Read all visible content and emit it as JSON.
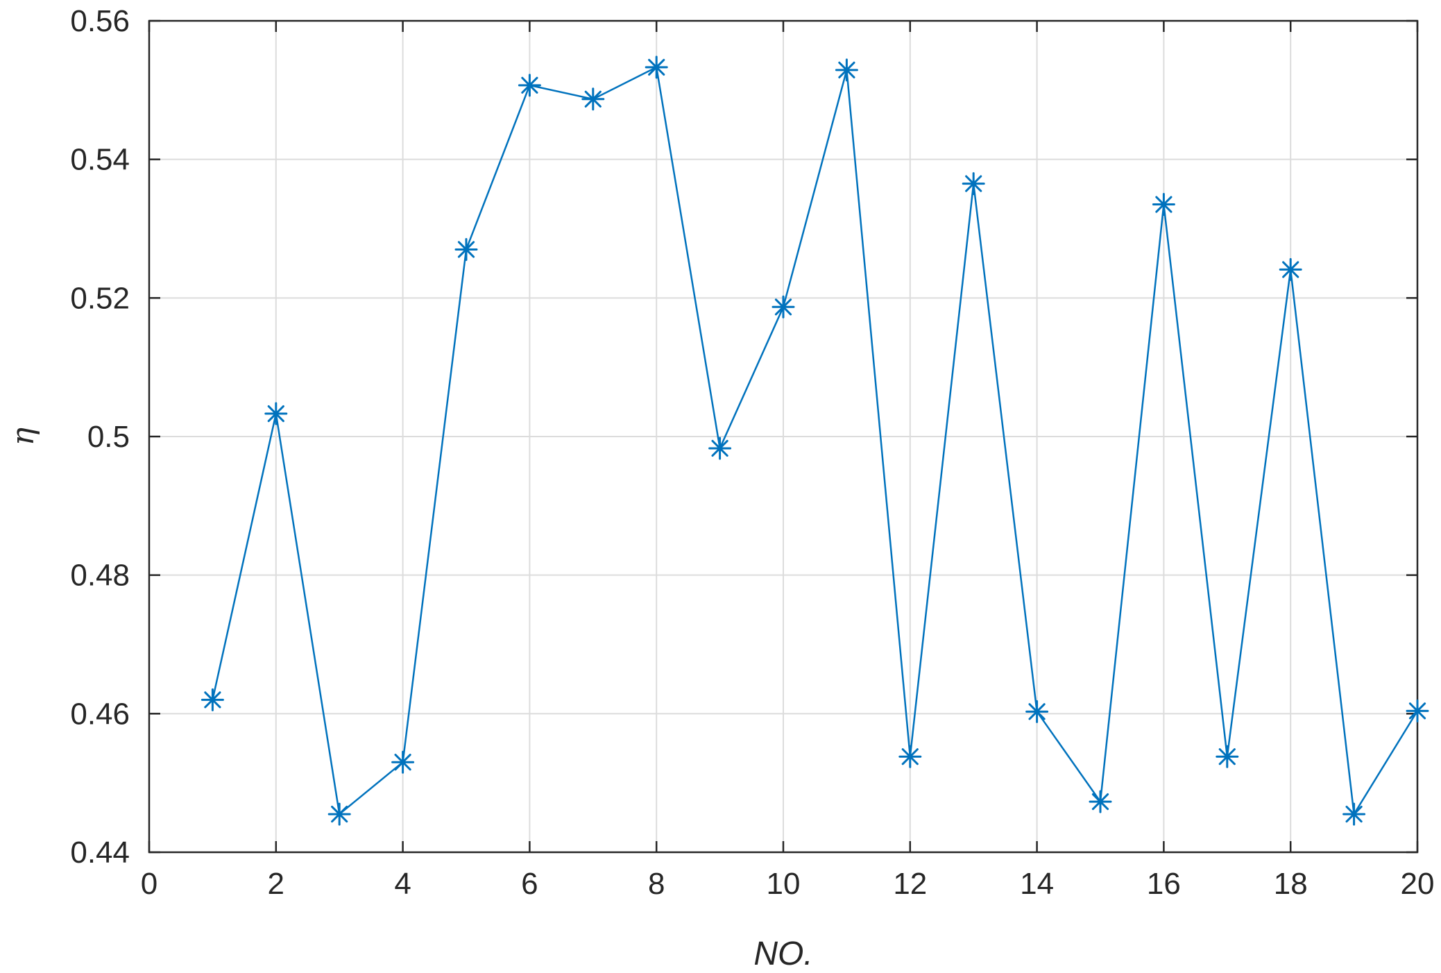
{
  "chart_data": {
    "type": "line",
    "title": "",
    "xlabel": "NO.",
    "ylabel": "η",
    "xlim": [
      0,
      20
    ],
    "ylim": [
      0.44,
      0.56
    ],
    "xticks": [
      0,
      2,
      4,
      6,
      8,
      10,
      12,
      14,
      16,
      18,
      20
    ],
    "yticks": [
      0.44,
      0.46,
      0.48,
      0.5,
      0.52,
      0.54,
      0.56
    ],
    "xtick_labels": [
      "0",
      "2",
      "4",
      "6",
      "8",
      "10",
      "12",
      "14",
      "16",
      "18",
      "20"
    ],
    "ytick_labels": [
      "0.44",
      "0.46",
      "0.48",
      "0.5",
      "0.52",
      "0.54",
      "0.56"
    ],
    "grid": true,
    "marker": "asterisk",
    "color": "#0072BD",
    "series": [
      {
        "x": [
          1,
          2,
          3,
          4,
          5,
          6,
          7,
          8,
          9,
          10,
          11,
          12,
          13,
          14,
          15,
          16,
          17,
          18,
          19,
          20
        ],
        "values": [
          0.462,
          0.5033,
          0.4455,
          0.453,
          0.527,
          0.5507,
          0.5487,
          0.5533,
          0.4983,
          0.5187,
          0.5529,
          0.4538,
          0.5365,
          0.4603,
          0.4473,
          0.5335,
          0.4538,
          0.5241,
          0.4455,
          0.4604
        ]
      }
    ]
  }
}
